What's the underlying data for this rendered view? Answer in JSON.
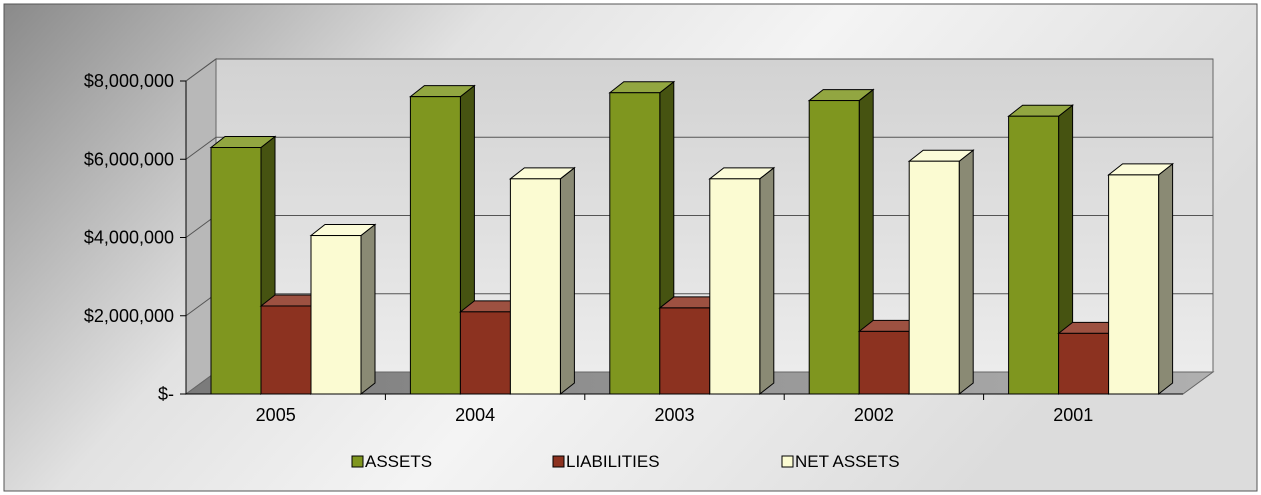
{
  "chart_data": {
    "type": "bar",
    "style": "3d-clustered",
    "categories": [
      "2005",
      "2004",
      "2003",
      "2002",
      "2001"
    ],
    "series": [
      {
        "name": "ASSETS",
        "color": "#7f961f",
        "values": [
          6300000,
          7600000,
          7700000,
          7500000,
          7100000
        ]
      },
      {
        "name": "LIABILITIES",
        "color": "#8c3220",
        "values": [
          2250000,
          2100000,
          2200000,
          1600000,
          1550000
        ]
      },
      {
        "name": "NET ASSETS",
        "color": "#fbfbd2",
        "values": [
          4050000,
          5500000,
          5500000,
          5950000,
          5600000
        ]
      }
    ],
    "y_ticks": [
      "$-",
      "$2,000,000",
      "$4,000,000",
      "$6,000,000",
      "$8,000,000"
    ],
    "ylim": [
      0,
      8000000
    ],
    "grid": true,
    "legend": "bottom",
    "title": "",
    "xlabel": "",
    "ylabel": ""
  }
}
